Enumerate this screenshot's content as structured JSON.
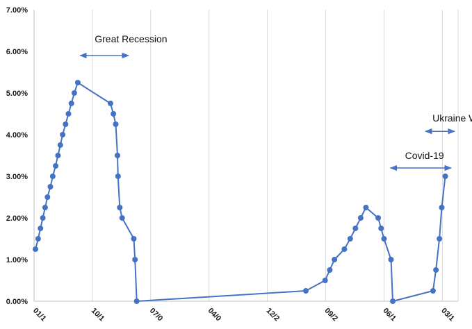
{
  "chart_data": {
    "type": "line",
    "title": "",
    "xlabel": "",
    "ylabel": "",
    "ylim": [
      0,
      7
    ],
    "y_ticks": [
      "0.00%",
      "1.00%",
      "2.00%",
      "3.00%",
      "4.00%",
      "5.00%",
      "6.00%",
      "7.00%"
    ],
    "x_ticks": [
      "01/1",
      "10/1",
      "07/0",
      "04/0",
      "12/2",
      "09/2",
      "06/1",
      "03/1"
    ],
    "grid": "vertical",
    "colors": {
      "line": "#4472C4",
      "grid": "#D9D9D9",
      "axis": "#BFBFBF",
      "arrow": "#4472C4"
    },
    "series": [
      {
        "values": [
          [
            0.12,
            1.25
          ],
          [
            0.35,
            1.5
          ],
          [
            0.55,
            1.75
          ],
          [
            0.75,
            2.0
          ],
          [
            0.95,
            2.25
          ],
          [
            1.15,
            2.5
          ],
          [
            1.4,
            2.75
          ],
          [
            1.6,
            3.0
          ],
          [
            1.85,
            3.25
          ],
          [
            2.05,
            3.5
          ],
          [
            2.25,
            3.75
          ],
          [
            2.45,
            4.0
          ],
          [
            2.7,
            4.25
          ],
          [
            2.95,
            4.5
          ],
          [
            3.2,
            4.75
          ],
          [
            3.45,
            5.0
          ],
          [
            3.75,
            5.25
          ],
          [
            6.55,
            4.75
          ],
          [
            6.8,
            4.5
          ],
          [
            7.0,
            4.25
          ],
          [
            7.15,
            3.5
          ],
          [
            7.2,
            3.0
          ],
          [
            7.35,
            2.25
          ],
          [
            7.55,
            2.0
          ],
          [
            8.55,
            1.5
          ],
          [
            8.65,
            1.0
          ],
          [
            8.8,
            0.0
          ],
          [
            23.3,
            0.25
          ],
          [
            24.95,
            0.5
          ],
          [
            25.35,
            0.75
          ],
          [
            25.75,
            1.0
          ],
          [
            26.6,
            1.25
          ],
          [
            27.1,
            1.5
          ],
          [
            27.55,
            1.75
          ],
          [
            28.0,
            2.0
          ],
          [
            28.45,
            2.25
          ],
          [
            29.5,
            2.0
          ],
          [
            29.75,
            1.75
          ],
          [
            30.0,
            1.5
          ],
          [
            30.6,
            1.0
          ],
          [
            30.75,
            0.0
          ],
          [
            34.2,
            0.25
          ],
          [
            34.45,
            0.75
          ],
          [
            34.75,
            1.5
          ],
          [
            34.95,
            2.25
          ],
          [
            35.25,
            3.0
          ]
        ]
      }
    ],
    "annotations": [
      {
        "text": "Great Recession",
        "arrow_from": 3.95,
        "arrow_to": 8.1,
        "arrow_y": 5.9,
        "text_x": 5.2,
        "text_y": 6.3
      },
      {
        "text": "Covid-19",
        "arrow_from": 30.55,
        "arrow_to": 35.75,
        "arrow_y": 3.2,
        "text_x": 31.8,
        "text_y": 3.5
      },
      {
        "text": "Ukraine War",
        "arrow_from": 33.55,
        "arrow_to": 36.05,
        "arrow_y": 4.08,
        "text_x": 34.15,
        "text_y": 4.4
      }
    ]
  }
}
